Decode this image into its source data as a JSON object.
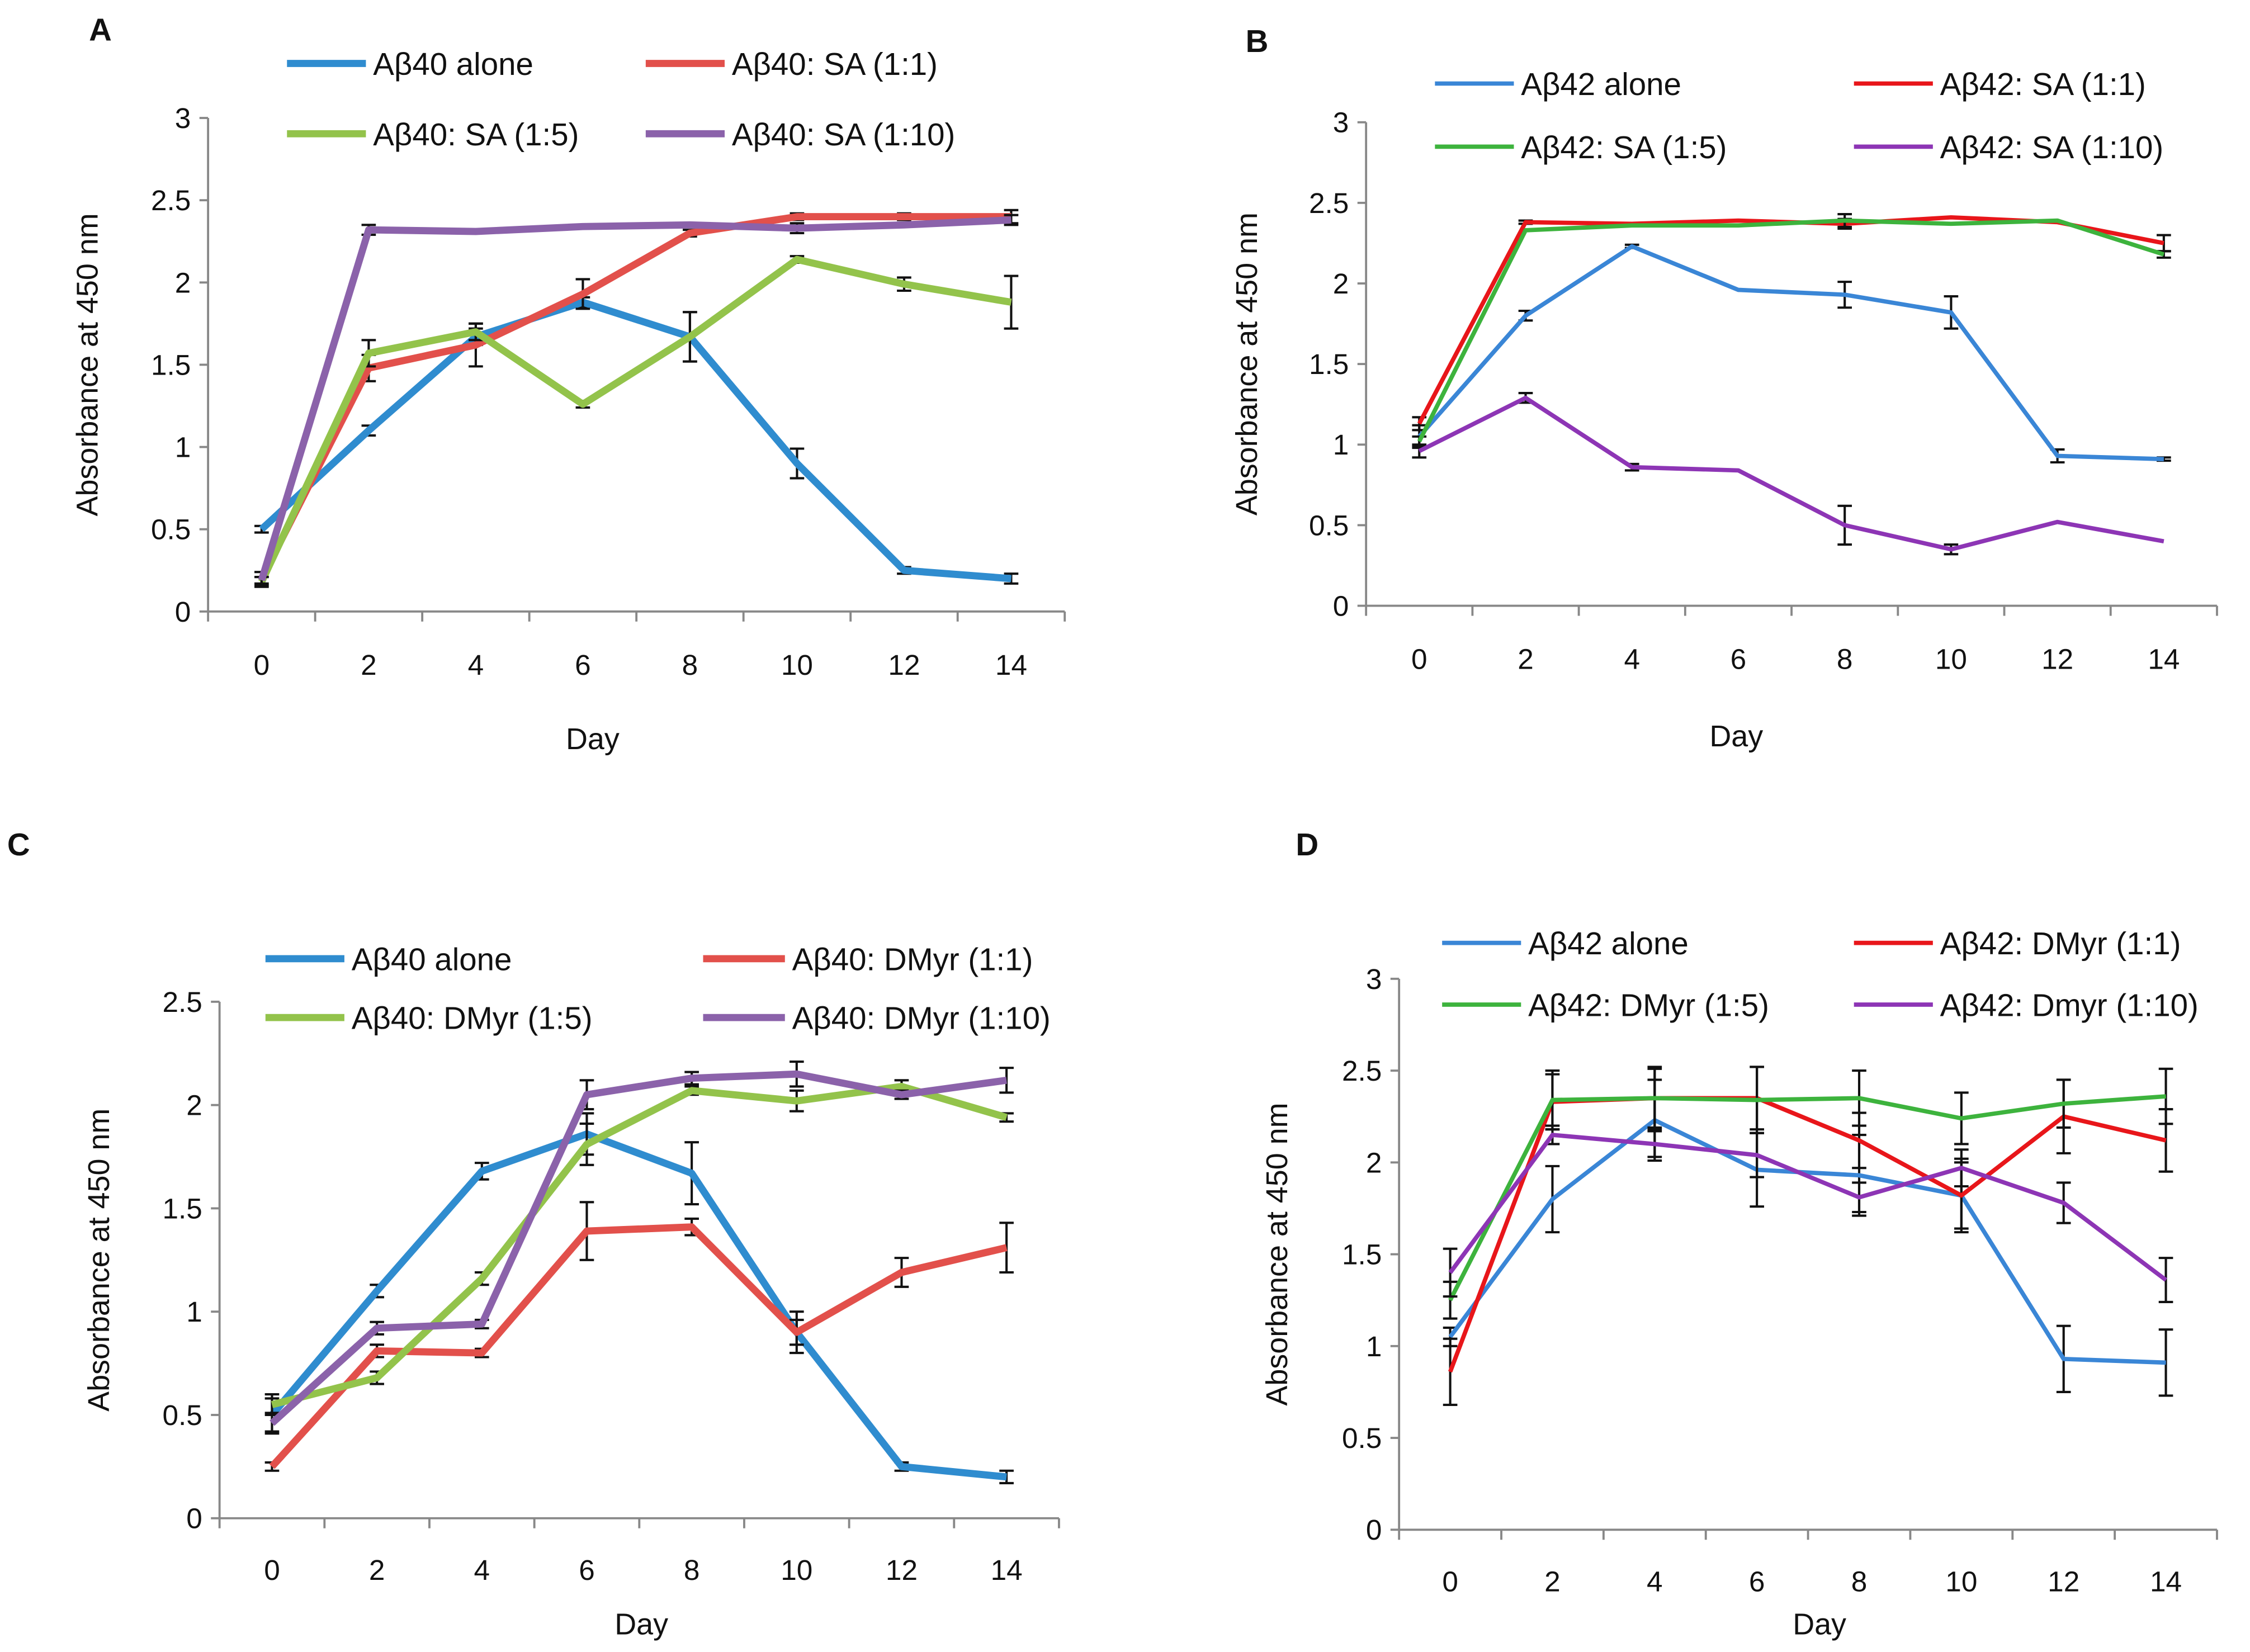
{
  "chart_data": [
    {
      "panel": "A",
      "type": "line",
      "xlabel": "Day",
      "ylabel": "Absorbance at 450 nm",
      "categories": [
        "0",
        "2",
        "4",
        "6",
        "8",
        "10",
        "12",
        "14"
      ],
      "ylim": [
        0,
        3
      ],
      "yticks": [
        "0",
        "0.5",
        "1",
        "1.5",
        "2",
        "2.5",
        "3"
      ],
      "grid": false,
      "legend": "top",
      "series": [
        {
          "name": "Aβ40 alone",
          "color": "#2f8ccf",
          "values": [
            0.5,
            1.1,
            1.67,
            1.88,
            1.67,
            0.9,
            0.25,
            0.2
          ],
          "errors": [
            0.02,
            0.03,
            0.05,
            0.03,
            0.15,
            0.09,
            0.02,
            0.03
          ]
        },
        {
          "name": "Aβ40: SA (1:1)",
          "color": "#e2504b",
          "values": [
            0.2,
            1.48,
            1.62,
            1.93,
            2.3,
            2.4,
            2.4,
            2.4
          ],
          "errors": [
            0.04,
            0.08,
            0.13,
            0.09,
            0.02,
            0.02,
            0.02,
            0.04
          ]
        },
        {
          "name": "Aβ40: SA (1:5)",
          "color": "#93c34b",
          "values": [
            0.18,
            1.57,
            1.7,
            1.26,
            1.67,
            2.14,
            1.99,
            1.88
          ],
          "errors": [
            0.03,
            0.08,
            0.05,
            0.02,
            0.15,
            0.02,
            0.04,
            0.16
          ]
        },
        {
          "name": "Aβ40: SA (1:10)",
          "color": "#8b62aa",
          "values": [
            0.19,
            2.32,
            2.31,
            2.34,
            2.35,
            2.33,
            2.35,
            2.38
          ],
          "errors": [
            0.02,
            0.03,
            0.0,
            0.0,
            0.0,
            0.03,
            0.0,
            0.03
          ]
        }
      ]
    },
    {
      "panel": "B",
      "type": "line",
      "xlabel": "Day",
      "ylabel": "Absorbance at 450 nm",
      "categories": [
        "0",
        "2",
        "4",
        "6",
        "8",
        "10",
        "12",
        "14"
      ],
      "ylim": [
        0,
        3
      ],
      "yticks": [
        "0",
        "0.5",
        "1",
        "1.5",
        "2",
        "2.5",
        "3"
      ],
      "grid": false,
      "legend": "top",
      "series": [
        {
          "name": "Aβ42 alone",
          "color": "#3a86d6",
          "values": [
            1.05,
            1.8,
            2.23,
            1.96,
            1.93,
            1.82,
            0.93,
            0.91
          ],
          "errors": [
            0.07,
            0.03,
            0.01,
            0.0,
            0.08,
            0.1,
            0.04,
            0.01
          ]
        },
        {
          "name": "Aβ42: SA (1:1)",
          "color": "#e8161a",
          "values": [
            1.13,
            2.38,
            2.37,
            2.39,
            2.37,
            2.41,
            2.38,
            2.25
          ],
          "errors": [
            0.04,
            0.01,
            0.0,
            0.0,
            0.03,
            0.0,
            0.0,
            0.05
          ]
        },
        {
          "name": "Aβ42: SA (1:5)",
          "color": "#3db33d",
          "values": [
            1.02,
            2.33,
            2.36,
            2.36,
            2.39,
            2.37,
            2.39,
            2.18
          ],
          "errors": [
            0.03,
            0.0,
            0.0,
            0.0,
            0.04,
            0.0,
            0.0,
            0.02
          ]
        },
        {
          "name": "Aβ42: SA (1:10)",
          "color": "#8d35b5",
          "values": [
            0.96,
            1.29,
            0.86,
            0.84,
            0.5,
            0.35,
            0.52,
            0.4
          ],
          "errors": [
            0.04,
            0.03,
            0.02,
            0.0,
            0.12,
            0.03,
            0.0,
            0.0
          ]
        }
      ]
    },
    {
      "panel": "C",
      "type": "line",
      "xlabel": "Day",
      "ylabel": "Absorbance at 450 nm",
      "categories": [
        "0",
        "2",
        "4",
        "6",
        "8",
        "10",
        "12",
        "14"
      ],
      "ylim": [
        0,
        2.5
      ],
      "yticks": [
        "0",
        "0.5",
        "1",
        "1.5",
        "2",
        "2.5"
      ],
      "grid": false,
      "legend": "top",
      "series": [
        {
          "name": "Aβ40 alone",
          "color": "#2f8ccf",
          "values": [
            0.5,
            1.1,
            1.68,
            1.86,
            1.67,
            0.9,
            0.25,
            0.2
          ],
          "errors": [
            0.08,
            0.03,
            0.04,
            0.1,
            0.15,
            0.1,
            0.02,
            0.03
          ]
        },
        {
          "name": "Aβ40: DMyr (1:1)",
          "color": "#e2504b",
          "values": [
            0.25,
            0.81,
            0.8,
            1.39,
            1.41,
            0.9,
            1.19,
            1.31
          ],
          "errors": [
            0.02,
            0.03,
            0.02,
            0.14,
            0.04,
            0.06,
            0.07,
            0.12
          ]
        },
        {
          "name": "Aβ40: DMyr (1:5)",
          "color": "#93c34b",
          "values": [
            0.55,
            0.68,
            1.16,
            1.81,
            2.07,
            2.02,
            2.09,
            1.94
          ],
          "errors": [
            0.05,
            0.03,
            0.03,
            0.1,
            0.02,
            0.05,
            0.03,
            0.02
          ]
        },
        {
          "name": "Aβ40: DMyr (1:10)",
          "color": "#8b62aa",
          "values": [
            0.46,
            0.92,
            0.94,
            2.05,
            2.13,
            2.15,
            2.05,
            2.12
          ],
          "errors": [
            0.05,
            0.03,
            0.02,
            0.07,
            0.03,
            0.06,
            0.02,
            0.06
          ]
        }
      ]
    },
    {
      "panel": "D",
      "type": "line",
      "xlabel": "Day",
      "ylabel": "Absorbance at 450 nm",
      "categories": [
        "0",
        "2",
        "4",
        "6",
        "8",
        "10",
        "12",
        "14"
      ],
      "ylim": [
        0,
        3
      ],
      "yticks": [
        "0",
        "0.5",
        "1",
        "1.5",
        "2",
        "2.5",
        "3"
      ],
      "grid": false,
      "legend": "top",
      "series": [
        {
          "name": "Aβ42 alone",
          "color": "#3a86d6",
          "values": [
            1.05,
            1.8,
            2.23,
            1.96,
            1.93,
            1.82,
            0.93,
            0.91
          ],
          "errors": [
            0.05,
            0.18,
            0.22,
            0.2,
            0.22,
            0.2,
            0.18,
            0.18
          ]
        },
        {
          "name": "Aβ42: DMyr (1:1)",
          "color": "#e8161a",
          "values": [
            0.86,
            2.33,
            2.35,
            2.35,
            2.12,
            1.82,
            2.25,
            2.12
          ],
          "errors": [
            0.18,
            0.15,
            0.17,
            0.17,
            0.15,
            0.18,
            0.2,
            0.17
          ]
        },
        {
          "name": "Aβ42: DMyr (1:5)",
          "color": "#3db33d",
          "values": [
            1.25,
            2.34,
            2.35,
            2.34,
            2.35,
            2.24,
            2.32,
            2.36
          ],
          "errors": [
            0.1,
            0.16,
            0.16,
            0.18,
            0.15,
            0.14,
            0.13,
            0.15
          ]
        },
        {
          "name": "Aβ42: Dmyr (1:10)",
          "color": "#8d35b5",
          "values": [
            1.4,
            2.15,
            2.1,
            2.04,
            1.81,
            1.97,
            1.78,
            1.36
          ],
          "errors": [
            0.13,
            0.05,
            0.07,
            0.12,
            0.08,
            0.1,
            0.11,
            0.12
          ]
        }
      ]
    }
  ]
}
